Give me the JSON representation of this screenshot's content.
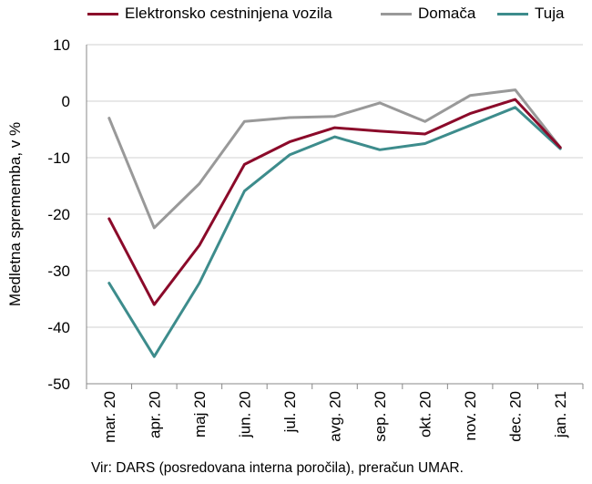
{
  "chart_data": {
    "type": "line",
    "title": "",
    "xlabel": "",
    "ylabel": "Medletna sprememba, v %",
    "ylim": [
      -50,
      10
    ],
    "yticks": [
      10,
      0,
      -10,
      -20,
      -30,
      -40,
      -50
    ],
    "grid": true,
    "legend_position": "top",
    "categories": [
      "mar. 20",
      "apr. 20",
      "maj 20",
      "jun. 20",
      "jul. 20",
      "avg. 20",
      "sep. 20",
      "okt. 20",
      "nov. 20",
      "dec. 20",
      "jan. 21"
    ],
    "series": [
      {
        "name": "Elektronsko cestninjena vozila",
        "color": "#8b0a2a",
        "values": [
          -20.8,
          -36.0,
          -25.5,
          -11.2,
          -7.2,
          -4.7,
          -5.3,
          -5.8,
          -2.2,
          0.3,
          -8.2
        ]
      },
      {
        "name": "Domača",
        "color": "#999999",
        "values": [
          -3.0,
          -22.4,
          -14.6,
          -3.6,
          -2.9,
          -2.7,
          -0.3,
          -3.6,
          1.0,
          2.0,
          -8.2
        ]
      },
      {
        "name": "Tuja",
        "color": "#3d8c8c",
        "values": [
          -32.2,
          -45.2,
          -32.2,
          -15.9,
          -9.5,
          -6.3,
          -8.6,
          -7.5,
          -4.3,
          -1.1,
          -8.4
        ]
      }
    ]
  },
  "source": "Vir: DARS (posredovana interna poročila), preračun UMAR."
}
